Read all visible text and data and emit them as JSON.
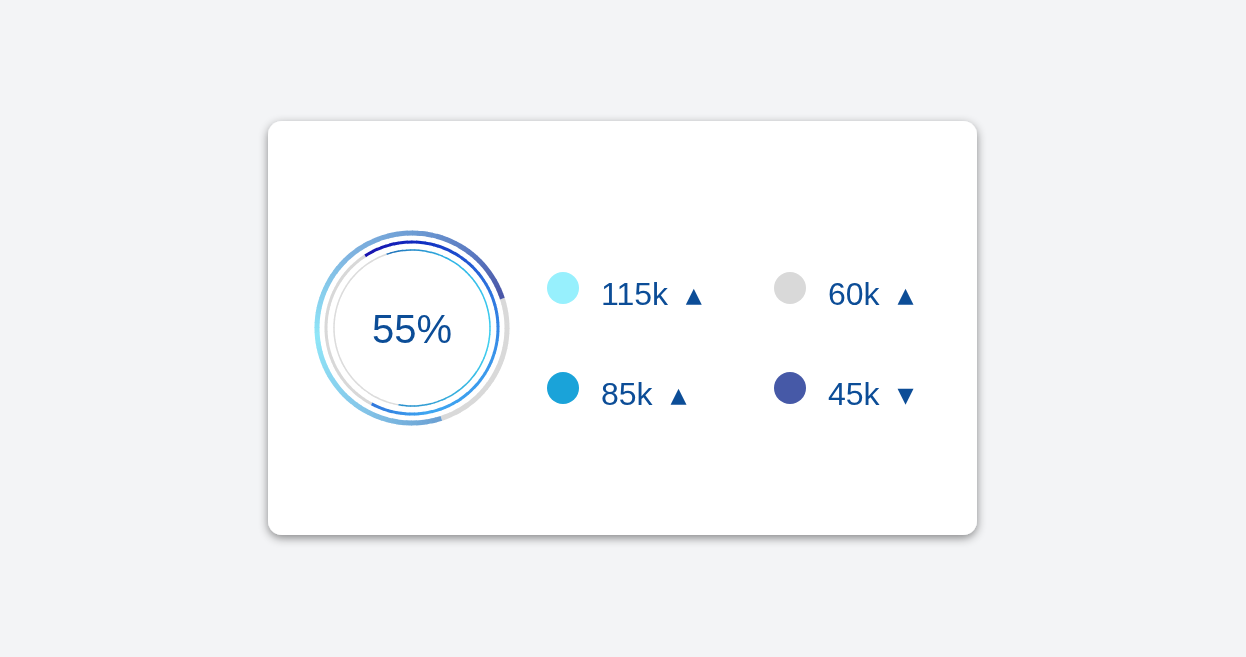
{
  "chart_data": {
    "type": "other",
    "annotations": [
      "55%"
    ],
    "categories": [
      null,
      null,
      null,
      null
    ],
    "values": [
      115,
      60,
      85,
      45
    ],
    "value_labels": [
      "115k  ▴",
      "60k  ▴",
      "85k  ▴",
      "45k  ▾"
    ],
    "colors": [
      "#97f0fd",
      "#d9d9d9",
      "#1aa3d9",
      "#4659a7"
    ]
  }
}
